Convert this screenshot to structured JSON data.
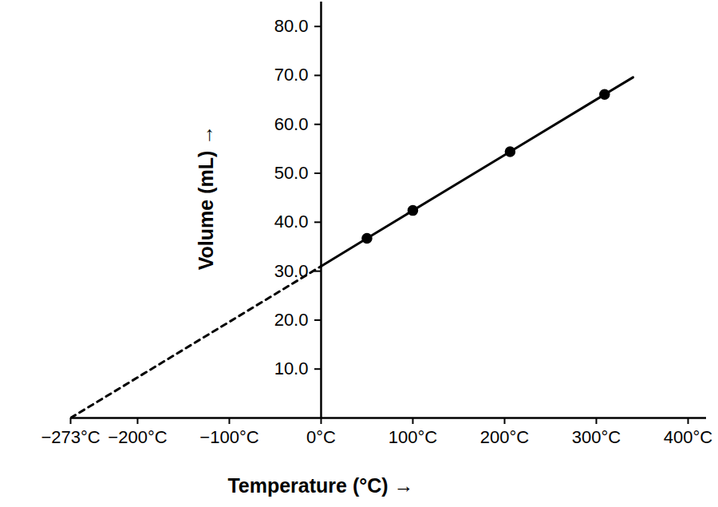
{
  "chart_data": {
    "type": "line",
    "x_label": "Temperature (°C) →",
    "y_label": "Volume (mL) →",
    "x": [
      -273,
      0,
      50,
      100,
      206,
      309,
      340
    ],
    "series": [
      {
        "type": "line",
        "line_style": "dashed",
        "marker": "none",
        "color": "#000000",
        "values": [
          0,
          31.0,
          null,
          null,
          null,
          null,
          null
        ]
      },
      {
        "type": "line",
        "line_style": "solid",
        "marker": "none",
        "color": "#000000",
        "values": [
          null,
          31.0,
          36.7,
          42.4,
          54.4,
          66.1,
          69.6
        ]
      },
      {
        "type": "scatter",
        "marker": "circle",
        "color": "#000000",
        "values": [
          null,
          null,
          36.7,
          42.4,
          54.4,
          66.1,
          null
        ]
      }
    ],
    "xlim": [
      -273,
      420
    ],
    "xticks": [
      {
        "value": -273,
        "label": "−273°C"
      },
      {
        "value": -200,
        "label": "−200°C"
      },
      {
        "value": -100,
        "label": "−100°C"
      },
      {
        "value": 0,
        "label": "0°C"
      },
      {
        "value": 100,
        "label": "100°C"
      },
      {
        "value": 200,
        "label": "200°C"
      },
      {
        "value": 300,
        "label": "300°C"
      },
      {
        "value": 400,
        "label": "400°C"
      }
    ],
    "ylim": [
      0,
      85
    ],
    "yticks": [
      {
        "value": 10,
        "label": "10.0"
      },
      {
        "value": 20,
        "label": "20.0"
      },
      {
        "value": 30,
        "label": "30.0"
      },
      {
        "value": 40,
        "label": "40.0"
      },
      {
        "value": 50,
        "label": "50.0"
      },
      {
        "value": 60,
        "label": "60.0"
      },
      {
        "value": 70,
        "label": "70.0"
      },
      {
        "value": 80,
        "label": "80.0"
      }
    ],
    "grid": false
  }
}
